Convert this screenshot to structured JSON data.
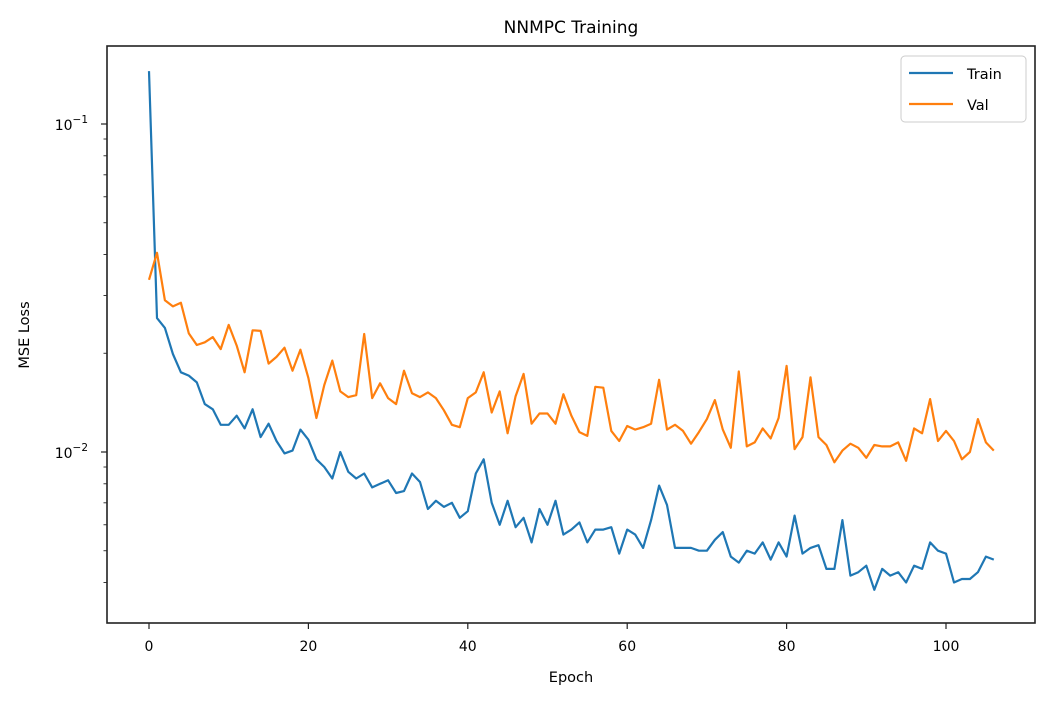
{
  "chart_data": {
    "type": "line",
    "title": "NNMPC Training",
    "xlabel": "Epoch",
    "ylabel": "MSE Loss",
    "yscale": "log",
    "xlim": [
      -5.3,
      111.3
    ],
    "ylim": [
      0.0033,
      0.18
    ],
    "xticks": [
      0,
      20,
      40,
      60,
      80,
      100
    ],
    "yticks": [
      {
        "value": 0.1,
        "label": "10^-1",
        "base": "10",
        "exp": "−1"
      },
      {
        "value": 0.01,
        "label": "10^-2",
        "base": "10",
        "exp": "−2"
      }
    ],
    "grid": false,
    "legend_position": "upper right",
    "series": [
      {
        "name": "Train",
        "color": "#1f77b4",
        "values": [
          0.145,
          0.0256,
          0.0239,
          0.0199,
          0.0175,
          0.0171,
          0.0163,
          0.014,
          0.0135,
          0.0121,
          0.0121,
          0.0129,
          0.0118,
          0.0135,
          0.0111,
          0.0122,
          0.0108,
          0.0099,
          0.0101,
          0.0117,
          0.0109,
          0.0095,
          0.009,
          0.0083,
          0.01,
          0.0087,
          0.0083,
          0.0086,
          0.0078,
          0.008,
          0.0082,
          0.0075,
          0.0076,
          0.0086,
          0.0081,
          0.0067,
          0.0071,
          0.0068,
          0.007,
          0.0063,
          0.0066,
          0.0086,
          0.0095,
          0.007,
          0.006,
          0.0071,
          0.0059,
          0.0063,
          0.0053,
          0.0067,
          0.006,
          0.0071,
          0.0056,
          0.0058,
          0.0061,
          0.0053,
          0.0058,
          0.0058,
          0.0059,
          0.0049,
          0.0058,
          0.0056,
          0.0051,
          0.0062,
          0.0079,
          0.0069,
          0.0051,
          0.0051,
          0.0051,
          0.005,
          0.005,
          0.0054,
          0.0057,
          0.0048,
          0.0046,
          0.005,
          0.0049,
          0.0053,
          0.0047,
          0.0053,
          0.0048,
          0.0064,
          0.0049,
          0.0051,
          0.0052,
          0.0044,
          0.0044,
          0.0062,
          0.0042,
          0.0043,
          0.0045,
          0.0038,
          0.0044,
          0.0042,
          0.0043,
          0.004,
          0.0045,
          0.0044,
          0.0053,
          0.005,
          0.0049,
          0.004,
          0.0041,
          0.0041,
          0.0043,
          0.0048,
          0.0047
        ]
      },
      {
        "name": "Val",
        "color": "#ff7f0e",
        "values": [
          0.0335,
          0.0405,
          0.029,
          0.0278,
          0.0285,
          0.023,
          0.0212,
          0.0216,
          0.0224,
          0.0206,
          0.0244,
          0.0211,
          0.0175,
          0.0235,
          0.0234,
          0.0186,
          0.0195,
          0.0208,
          0.0177,
          0.0205,
          0.0168,
          0.0127,
          0.016,
          0.019,
          0.0153,
          0.0147,
          0.0149,
          0.0229,
          0.0146,
          0.0162,
          0.0146,
          0.014,
          0.0177,
          0.0151,
          0.0147,
          0.0152,
          0.0146,
          0.0134,
          0.0121,
          0.0119,
          0.0146,
          0.0152,
          0.0175,
          0.0132,
          0.0153,
          0.0114,
          0.0148,
          0.0173,
          0.0122,
          0.0131,
          0.0131,
          0.0122,
          0.015,
          0.0129,
          0.0115,
          0.0112,
          0.0158,
          0.0157,
          0.0116,
          0.0108,
          0.012,
          0.0117,
          0.0119,
          0.0122,
          0.0166,
          0.0117,
          0.0121,
          0.0116,
          0.0106,
          0.0115,
          0.0126,
          0.0144,
          0.0117,
          0.0103,
          0.0176,
          0.0104,
          0.0107,
          0.0118,
          0.011,
          0.0127,
          0.0183,
          0.0102,
          0.0111,
          0.0169,
          0.0111,
          0.0105,
          0.0093,
          0.0101,
          0.0106,
          0.0103,
          0.0096,
          0.0105,
          0.0104,
          0.0104,
          0.0107,
          0.0094,
          0.0118,
          0.0114,
          0.0145,
          0.0108,
          0.0116,
          0.0108,
          0.0095,
          0.01,
          0.0126,
          0.0107,
          0.0101
        ]
      }
    ]
  }
}
